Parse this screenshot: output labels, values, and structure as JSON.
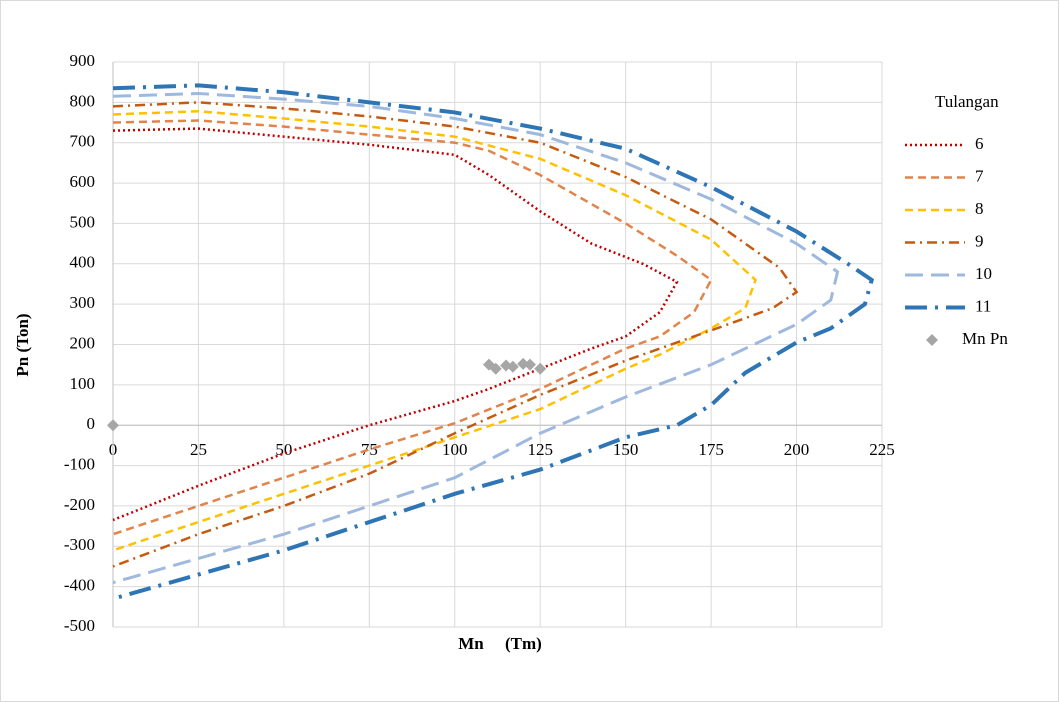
{
  "chart_data": {
    "type": "scatter-line",
    "x_label": "Mn     (Tm)",
    "y_label": "Pn (Ton)",
    "legend_title": "Tulangan",
    "xlim": [
      0,
      225
    ],
    "xticks": [
      0,
      25,
      50,
      75,
      100,
      125,
      150,
      175,
      200,
      225
    ],
    "ylim": [
      -500,
      900
    ],
    "yticks": [
      -500,
      -400,
      -300,
      -200,
      -100,
      0,
      100,
      200,
      300,
      400,
      500,
      600,
      700,
      800,
      900
    ],
    "grid": true,
    "legend": "right",
    "series": [
      {
        "name": "6",
        "color": "#c00000",
        "line_style": "dotted",
        "x": [
          0,
          25,
          50,
          75,
          100,
          110,
          125,
          140,
          155,
          165,
          160,
          150,
          140,
          125,
          110,
          100,
          75,
          50,
          25,
          0
        ],
        "y": [
          730,
          735,
          715,
          695,
          670,
          620,
          530,
          450,
          400,
          355,
          280,
          220,
          190,
          140,
          90,
          60,
          0,
          -70,
          -150,
          -235
        ]
      },
      {
        "name": "7",
        "color": "#e2834a",
        "line_style": "dashed",
        "x": [
          0,
          25,
          50,
          75,
          100,
          110,
          125,
          150,
          165,
          175,
          170,
          160,
          150,
          140,
          125,
          100,
          75,
          50,
          25,
          0
        ],
        "y": [
          750,
          755,
          740,
          720,
          700,
          680,
          620,
          500,
          420,
          360,
          280,
          220,
          190,
          150,
          90,
          5,
          -60,
          -130,
          -200,
          -270
        ]
      },
      {
        "name": "8",
        "color": "#ffc000",
        "line_style": "dashed",
        "x": [
          0,
          25,
          50,
          75,
          100,
          125,
          150,
          175,
          188,
          185,
          175,
          160,
          150,
          125,
          100,
          75,
          50,
          25,
          0
        ],
        "y": [
          770,
          778,
          760,
          740,
          715,
          660,
          570,
          460,
          360,
          290,
          240,
          175,
          140,
          40,
          -30,
          -100,
          -170,
          -240,
          -310
        ]
      },
      {
        "name": "9",
        "color": "#c55a11",
        "line_style": "dash-dot",
        "x": [
          0,
          25,
          50,
          75,
          100,
          125,
          150,
          175,
          195,
          200,
          193,
          180,
          160,
          150,
          125,
          100,
          75,
          50,
          25,
          0
        ],
        "y": [
          790,
          800,
          785,
          765,
          740,
          700,
          615,
          510,
          390,
          330,
          290,
          250,
          190,
          160,
          75,
          -20,
          -120,
          -200,
          -270,
          -350
        ]
      },
      {
        "name": "10",
        "color": "#9eb8de",
        "line_style": "long-dash",
        "x": [
          0,
          25,
          50,
          75,
          100,
          125,
          150,
          175,
          200,
          212,
          210,
          200,
          190,
          175,
          150,
          125,
          100,
          75,
          50,
          25,
          0
        ],
        "y": [
          815,
          822,
          808,
          790,
          760,
          720,
          650,
          560,
          450,
          380,
          310,
          250,
          210,
          150,
          70,
          -20,
          -130,
          -200,
          -270,
          -330,
          -390
        ]
      },
      {
        "name": "11",
        "color": "#2e75b6",
        "line_style": "long-dash-dot",
        "x": [
          0,
          25,
          50,
          75,
          100,
          125,
          150,
          175,
          200,
          215,
          222,
          220,
          210,
          200,
          185,
          175,
          165,
          150,
          125,
          100,
          75,
          50,
          25,
          0
        ],
        "y": [
          835,
          842,
          825,
          800,
          775,
          735,
          685,
          590,
          480,
          400,
          360,
          300,
          240,
          205,
          130,
          50,
          0,
          -30,
          -110,
          -170,
          -240,
          -310,
          -370,
          -430
        ]
      },
      {
        "name": "Mn Pn",
        "color": "#a6a6a6",
        "line_style": "markers",
        "x": [
          0,
          110,
          112,
          115,
          117,
          120,
          122,
          125
        ],
        "y": [
          0,
          150,
          140,
          148,
          145,
          152,
          150,
          140
        ]
      }
    ]
  }
}
